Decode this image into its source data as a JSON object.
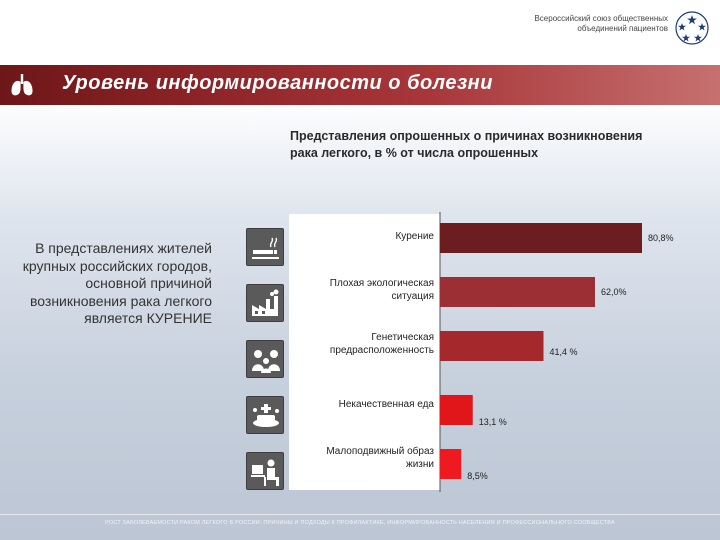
{
  "header": {
    "org_name": "Всероссийский союз общественных объединений пациентов",
    "title": "Уровень информированности о болезни"
  },
  "side_note": "В представлениях жителей крупных российских городов, основной причиной возникновения рака легкого является КУРЕНИЕ",
  "footer": "РОСТ ЗАБОЛЕВАЕМОСТИ РАКОМ ЛЕГКОГО В РОССИИ: ПРИЧИНЫ И ПОДХОДЫ К ПРОФИЛАКТИКЕ, ИНФОРМИРОВАННОСТЬ НАСЕЛЕНИЯ И ПРОФЕССИОНАЛЬНОГО СООБЩЕСТВА",
  "icons": [
    "smoking-icon",
    "factory-pollution-icon",
    "family-genetics-icon",
    "junk-food-icon",
    "sedentary-person-icon"
  ],
  "colors": {
    "banner": "#8a2225",
    "bars": [
      "#6b1d20",
      "#9c2f33",
      "#a5282c",
      "#e0161b",
      "#ee1a1f"
    ]
  },
  "chart_data": {
    "type": "bar",
    "orientation": "horizontal",
    "title": "Представления опрошенных о причинах возникновения рака легкого,  в % от числа опрошенных",
    "categories": [
      [
        "Курение"
      ],
      [
        "Плохая экологическая",
        "ситуация"
      ],
      [
        "Генетическая",
        "предрасположенность"
      ],
      [
        "Некачественная еда"
      ],
      [
        "Малоподвижный образ",
        "жизни"
      ]
    ],
    "values": [
      80.8,
      62.0,
      41.4,
      13.1,
      8.5
    ],
    "value_labels": [
      "80,8%",
      "62,0%",
      "41,4 %",
      "13,1 %",
      "8,5%"
    ],
    "xlim": [
      0,
      100
    ],
    "unit": "%"
  }
}
